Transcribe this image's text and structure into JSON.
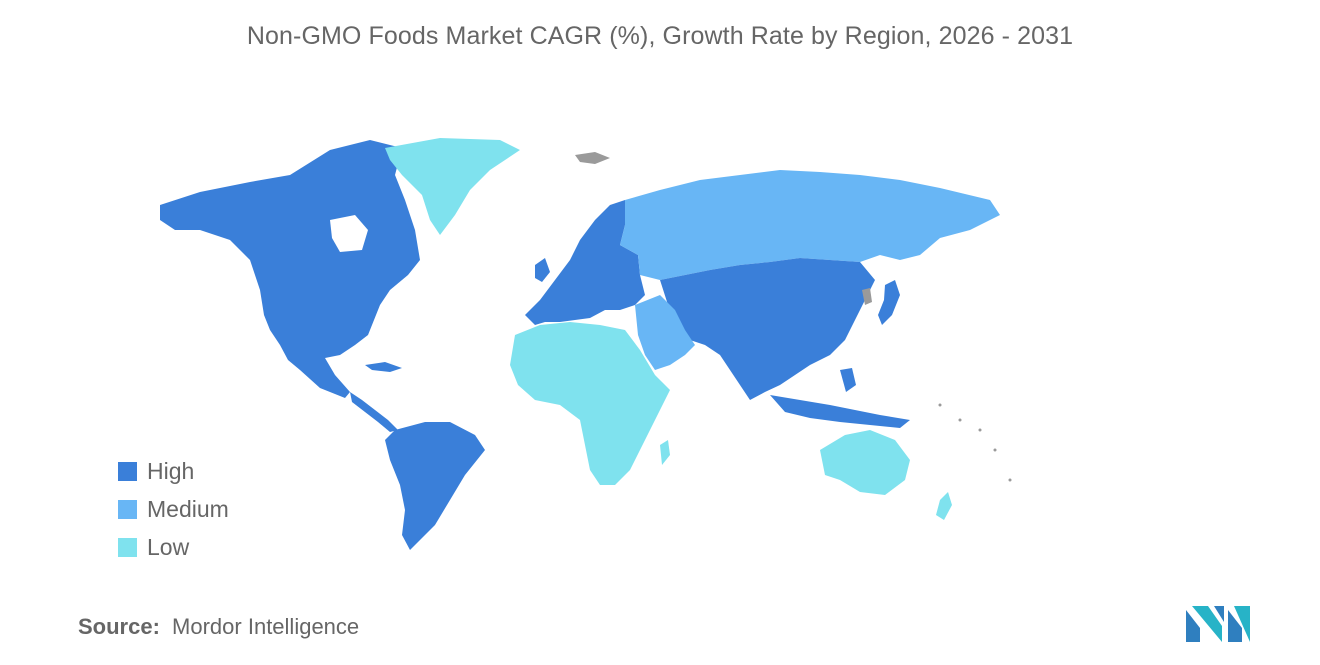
{
  "title": "Non-GMO Foods Market CAGR (%), Growth Rate by Region, 2026 - 2031",
  "legend": [
    {
      "label": "High",
      "color": "#3a7fd9"
    },
    {
      "label": "Medium",
      "color": "#68b6f5"
    },
    {
      "label": "Low",
      "color": "#7fe2ee"
    }
  ],
  "no_data_color": "#9a9a9a",
  "source": {
    "label": "Source:",
    "value": "Mordor Intelligence"
  },
  "regions": [
    {
      "name": "North America",
      "level": "High"
    },
    {
      "name": "South America",
      "level": "High"
    },
    {
      "name": "Europe",
      "level": "High"
    },
    {
      "name": "Asia-Pacific",
      "level": "High"
    },
    {
      "name": "Russia",
      "level": "Medium"
    },
    {
      "name": "Middle East",
      "level": "Medium"
    },
    {
      "name": "Africa",
      "level": "Low"
    },
    {
      "name": "Australia & New Zealand",
      "level": "Low"
    },
    {
      "name": "Greenland",
      "level": "Low"
    }
  ]
}
